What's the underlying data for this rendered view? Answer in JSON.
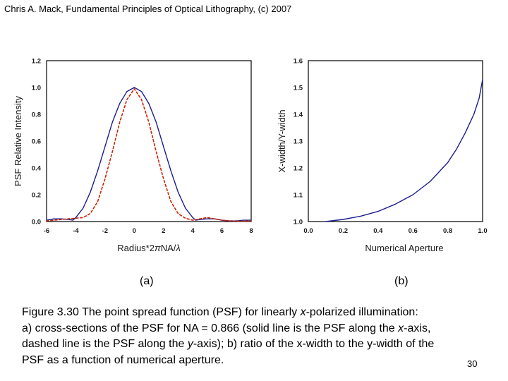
{
  "credit": "Chris A. Mack, Fundamental Principles of Optical Lithography, (c) 2007",
  "chart_data": [
    {
      "type": "line",
      "ylabel": "PSF Relative Intensity",
      "xlabel_prefix": "Radius*2",
      "xlabel_pi": "π",
      "xlabel_mid": "NA/",
      "xlabel_lambda": "λ",
      "xlim": [
        -6,
        8
      ],
      "ylim": [
        0,
        1.2
      ],
      "x_ticks": [
        "-6",
        "-4",
        "-2",
        "0",
        "2",
        "4",
        "6",
        "8"
      ],
      "x_tick_values": [
        -6,
        -4,
        -2,
        0,
        2,
        4,
        6,
        8
      ],
      "y_ticks": [
        "0.0",
        "0.2",
        "0.4",
        "0.6",
        "0.8",
        "1.0",
        "1.2"
      ],
      "y_tick_values": [
        0,
        0.2,
        0.4,
        0.6,
        0.8,
        1.0,
        1.2
      ],
      "series": [
        {
          "style": "solid",
          "color": "#1c1c8c",
          "x": [
            -6,
            -5.5,
            -5,
            -4.5,
            -4.2,
            -4,
            -3.5,
            -3,
            -2.5,
            -2,
            -1.5,
            -1,
            -0.5,
            0,
            0.5,
            1,
            1.5,
            2,
            2.5,
            3,
            3.5,
            4,
            4.2,
            4.5,
            5,
            5.5,
            6,
            6.5,
            7,
            7.5,
            8
          ],
          "y": [
            0.01,
            0.02,
            0.02,
            0.015,
            0.01,
            0.03,
            0.1,
            0.22,
            0.38,
            0.56,
            0.74,
            0.88,
            0.97,
            1.0,
            0.97,
            0.88,
            0.74,
            0.56,
            0.38,
            0.22,
            0.1,
            0.03,
            0.01,
            0.015,
            0.02,
            0.02,
            0.01,
            0.005,
            0.005,
            0.01,
            0.01
          ]
        },
        {
          "style": "dashed",
          "color": "#cc2200",
          "x": [
            -6,
            -5.5,
            -5,
            -4.5,
            -4,
            -3.5,
            -3,
            -2.5,
            -2,
            -1.5,
            -1,
            -0.5,
            0,
            0.5,
            1,
            1.5,
            2,
            2.5,
            3,
            3.5,
            4,
            4.5,
            5,
            5.5,
            6,
            6.5,
            7,
            7.5,
            8
          ],
          "y": [
            0.005,
            0.01,
            0.015,
            0.02,
            0.025,
            0.03,
            0.06,
            0.15,
            0.32,
            0.52,
            0.74,
            0.91,
            0.99,
            0.91,
            0.74,
            0.52,
            0.32,
            0.15,
            0.06,
            0.025,
            0.01,
            0.02,
            0.03,
            0.02,
            0.01,
            0.005,
            0.003,
            0.003,
            0.005
          ]
        }
      ]
    },
    {
      "type": "line",
      "ylabel": "X-width/Y-width",
      "xlabel": "Numerical Aperture",
      "xlim": [
        0,
        1.0
      ],
      "ylim": [
        1.0,
        1.6
      ],
      "x_ticks": [
        "0.0",
        "0.2",
        "0.4",
        "0.6",
        "0.8",
        "1.0"
      ],
      "x_tick_values": [
        0,
        0.2,
        0.4,
        0.6,
        0.8,
        1.0
      ],
      "y_ticks": [
        "1.0",
        "1.1",
        "1.2",
        "1.3",
        "1.4",
        "1.5",
        "1.6"
      ],
      "y_tick_values": [
        1.0,
        1.1,
        1.2,
        1.3,
        1.4,
        1.5,
        1.6
      ],
      "series": [
        {
          "style": "solid",
          "color": "#1c1c8c",
          "x": [
            0.1,
            0.2,
            0.3,
            0.4,
            0.5,
            0.6,
            0.7,
            0.8,
            0.85,
            0.9,
            0.95,
            0.98,
            1.0
          ],
          "y": [
            1.0,
            1.008,
            1.02,
            1.038,
            1.065,
            1.1,
            1.15,
            1.22,
            1.27,
            1.33,
            1.4,
            1.46,
            1.53
          ]
        }
      ]
    }
  ],
  "label_a": "(a)",
  "label_b": "(b)",
  "caption": {
    "line1_a": "Figure 3.30  The point spread function (PSF) for linearly ",
    "line1_i": "x",
    "line1_b": "-polarized illumination:",
    "line2_a": "a) cross-sections of the PSF  for NA = 0.866 (solid line is the PSF along the ",
    "line2_i": "x",
    "line2_b": "-axis,",
    "line3_a": "dashed line is the PSF along the ",
    "line3_i": "y",
    "line3_b": "-axis); b) ratio of the x-width to the y-width of the",
    "line4": "PSF as a function of numerical aperture."
  },
  "page_number": "30"
}
